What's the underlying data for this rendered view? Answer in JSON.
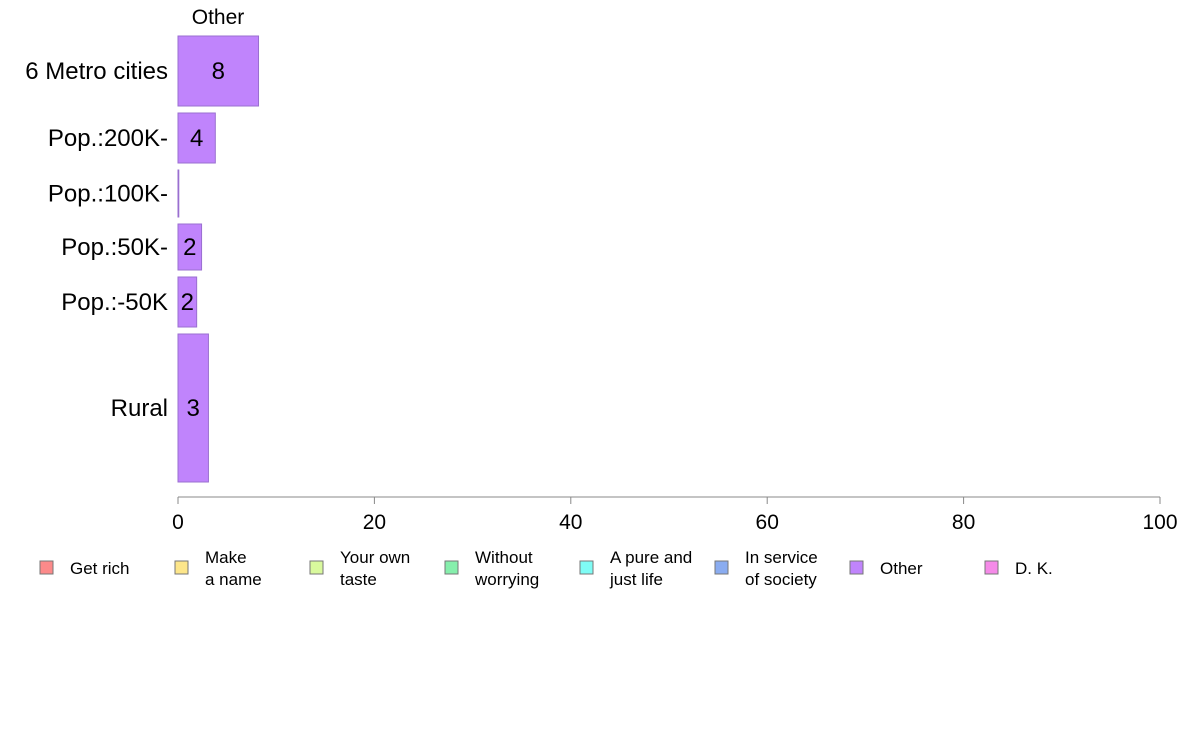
{
  "chart_data": {
    "type": "bar",
    "orientation": "horizontal",
    "panel_title": "Other",
    "categories": [
      "6 Metro cities",
      "Pop.:200K-",
      "Pop.:100K-",
      "Pop.:50K-",
      "Pop.:-50K",
      "Rural"
    ],
    "series": [
      {
        "name": "Other",
        "color": "#c084fc",
        "values": [
          8.2,
          3.8,
          0,
          2.4,
          1.9,
          3.1
        ],
        "labels": [
          "8",
          "4",
          "",
          "2",
          "2",
          "3"
        ]
      }
    ],
    "xlim": [
      0,
      100
    ],
    "xticks": [
      "0",
      "20",
      "40",
      "60",
      "80",
      "100"
    ],
    "xticks_values": [
      0,
      20,
      40,
      60,
      80,
      100
    ],
    "xlabel": "",
    "ylabel": "",
    "grid": false,
    "legend_placement": "bottom",
    "legend": [
      {
        "label": [
          "Get rich"
        ],
        "color": "#fc8a8a"
      },
      {
        "label": [
          "Make",
          "a name"
        ],
        "color": "#fde68a"
      },
      {
        "label": [
          "Your own",
          "taste"
        ],
        "color": "#d9f99d"
      },
      {
        "label": [
          "Without",
          "worrying"
        ],
        "color": "#86efac"
      },
      {
        "label": [
          "A pure and",
          "just life"
        ],
        "color": "#7ffcf5"
      },
      {
        "label": [
          "In service",
          "of society"
        ],
        "color": "#8aacf0"
      },
      {
        "label": [
          "Other"
        ],
        "color": "#c084fc"
      },
      {
        "label": [
          "D. K."
        ],
        "color": "#f58ae8"
      }
    ]
  }
}
